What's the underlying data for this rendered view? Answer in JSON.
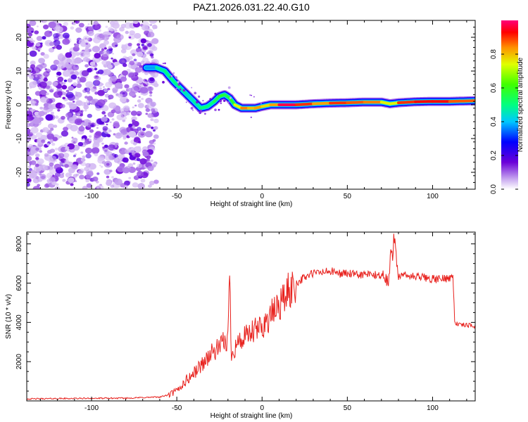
{
  "chart_data": [
    {
      "type": "heatmap",
      "title": "PAZ1.2026.031.22.40.G10",
      "xlabel": "Height of straight line (km)",
      "ylabel": "Frequency (Hz)",
      "xlim": [
        -138,
        125
      ],
      "ylim": [
        -25,
        25
      ],
      "xticks": [
        -100,
        -50,
        0,
        50,
        100
      ],
      "yticks": [
        -20,
        -10,
        0,
        10,
        20
      ],
      "ridge": {
        "x": [
          -68,
          -62,
          -57,
          -52,
          -48,
          -44,
          -40,
          -36,
          -32,
          -28,
          -25,
          -22,
          -19,
          -16,
          -12,
          -8,
          -4,
          0,
          5,
          10,
          20,
          30,
          40,
          50,
          60,
          70,
          75,
          80,
          90,
          100,
          110,
          125
        ],
        "y": [
          11,
          11,
          10,
          7,
          5,
          3,
          1,
          -1,
          -0.5,
          1,
          2.5,
          3,
          2,
          0,
          -1,
          -1,
          -1,
          -0.5,
          0,
          0,
          0,
          0.3,
          0.5,
          0.6,
          0.8,
          0.8,
          0.3,
          0.6,
          0.9,
          1,
          1,
          1.2
        ],
        "amplitude": [
          0.3,
          0.45,
          0.5,
          0.5,
          0.5,
          0.45,
          0.45,
          0.5,
          0.5,
          0.5,
          0.6,
          0.55,
          0.55,
          0.6,
          0.9,
          0.8,
          0.8,
          0.85,
          0.7,
          0.95,
          1.0,
          0.8,
          0.85,
          0.95,
          0.8,
          0.9,
          0.6,
          0.9,
          0.9,
          0.95,
          0.9,
          0.85
        ]
      },
      "colorbar": {
        "label": "Normalized spectral amplitude",
        "range": [
          0,
          1
        ],
        "ticks": [
          "0.0",
          "0.2",
          "0.4",
          "0.6",
          "0.8"
        ]
      }
    },
    {
      "type": "line",
      "xlabel": "Height of straight line (km)",
      "ylabel": "SNR (10 * v/v)",
      "xlim": [
        -138,
        125
      ],
      "ylim": [
        0,
        8600
      ],
      "xticks": [
        -100,
        -50,
        0,
        50,
        100
      ],
      "yticks": [
        2000,
        4000,
        6000,
        8000
      ],
      "series": [
        {
          "name": "SNR",
          "color": "#e8221e",
          "x": [
            -138,
            -120,
            -100,
            -80,
            -60,
            -55,
            -50,
            -45,
            -40,
            -35,
            -30,
            -25,
            -22,
            -20,
            -19,
            -18,
            -15,
            -10,
            -5,
            0,
            5,
            10,
            15,
            20,
            25,
            30,
            35,
            40,
            45,
            50,
            55,
            60,
            65,
            70,
            74,
            76,
            78,
            80,
            85,
            90,
            95,
            100,
            105,
            110,
            112,
            113,
            115,
            120,
            125
          ],
          "y": [
            100,
            120,
            130,
            140,
            200,
            300,
            500,
            1000,
            1400,
            1900,
            2400,
            2700,
            3000,
            3100,
            6500,
            2400,
            2900,
            3200,
            3500,
            3800,
            4300,
            4900,
            5500,
            6000,
            6300,
            6500,
            6550,
            6600,
            6500,
            6500,
            6400,
            6450,
            6400,
            6400,
            6000,
            7500,
            8600,
            6300,
            6400,
            6300,
            6300,
            6200,
            6200,
            6300,
            6300,
            4000,
            3900,
            3850,
            3800
          ]
        }
      ]
    }
  ]
}
